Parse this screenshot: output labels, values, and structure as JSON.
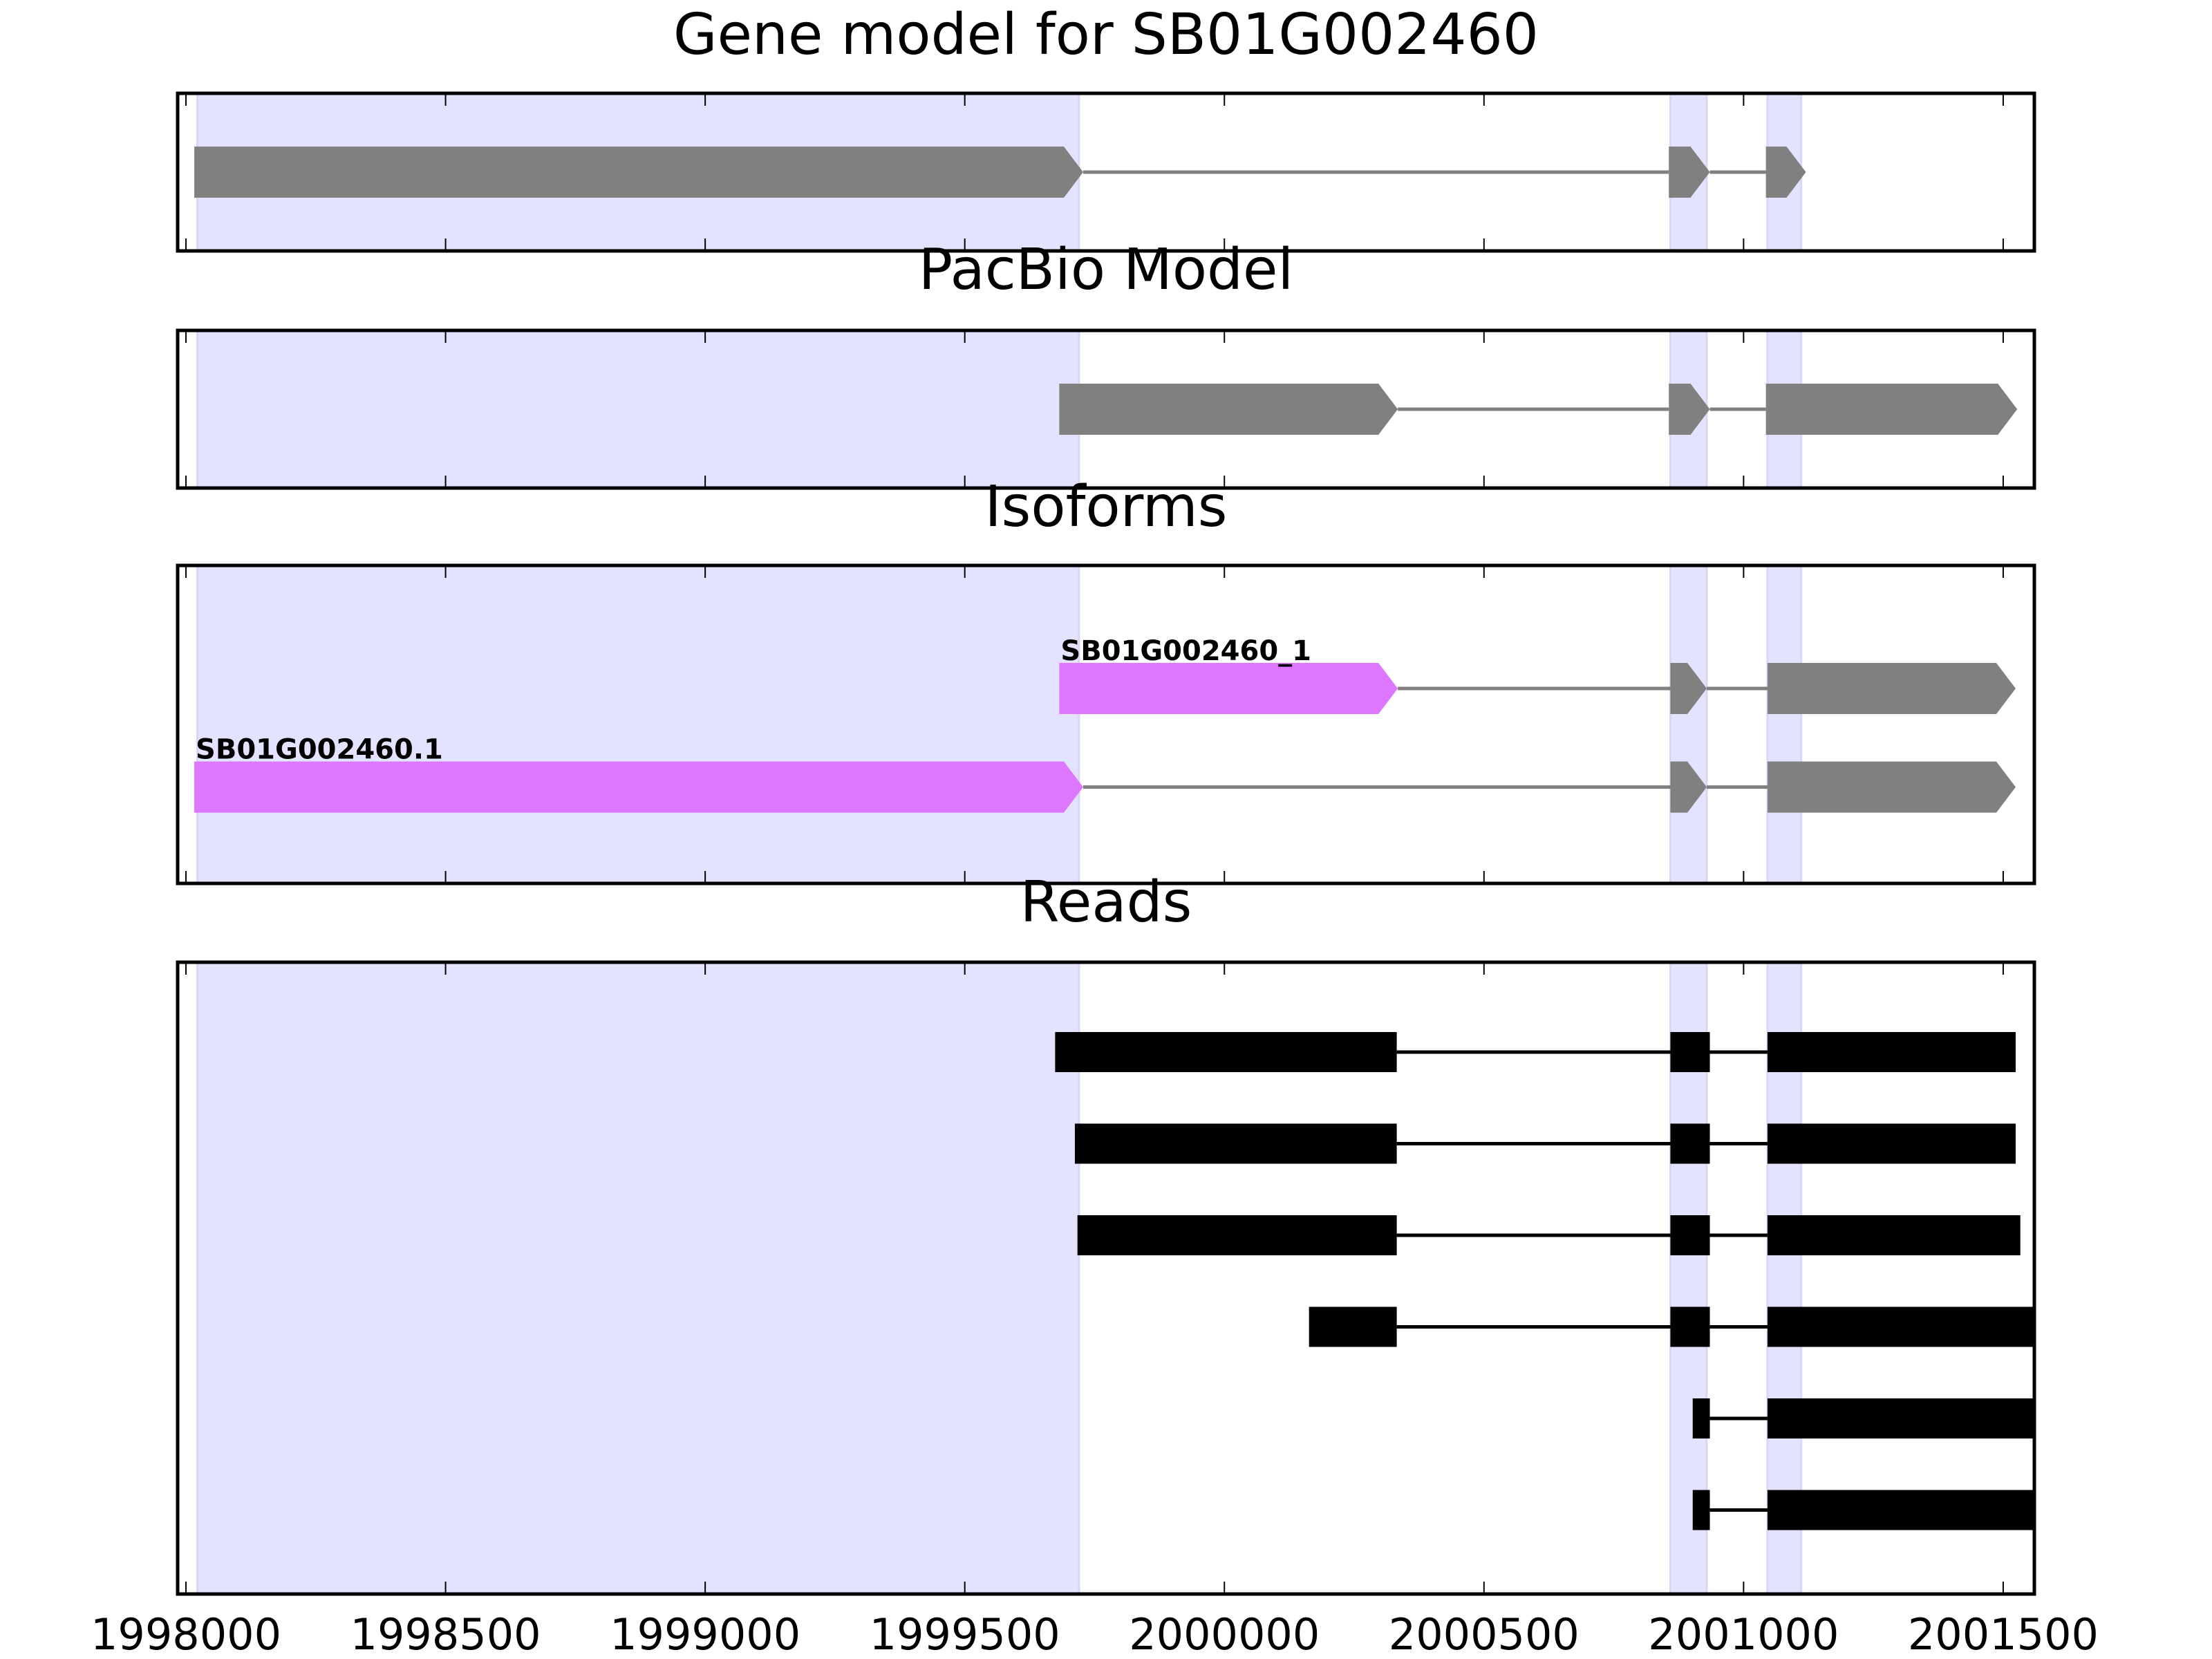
{
  "chart_data": {
    "type": "gene-track",
    "xlim": [
      1997984,
      2001560
    ],
    "xticks": [
      1998000,
      1998500,
      1999000,
      1999500,
      2000000,
      2000500,
      2001000,
      2001500
    ],
    "xtick_labels": [
      "1998000",
      "1998500",
      "1999000",
      "1999500",
      "2000000",
      "2000500",
      "2001000",
      "2001500"
    ],
    "shaded_regions": [
      [
        1998022,
        1999720
      ],
      [
        2000859,
        2000929
      ],
      [
        2001046,
        2001111
      ]
    ],
    "colors": {
      "exon": "#808080",
      "isoform_highlight": "#dd77ff",
      "read": "#000000",
      "shade": "#e3e3ff",
      "intron": "#808080"
    },
    "panels": [
      {
        "title": "Gene model for SB01G002460",
        "kind": "model",
        "rows": [
          {
            "label": "",
            "exons": [
              [
                1998016,
                1999728
              ],
              [
                2000856,
                2000935
              ],
              [
                2001043,
                2001120
              ]
            ],
            "highlight": []
          }
        ]
      },
      {
        "title": "PacBio Model",
        "kind": "model",
        "rows": [
          {
            "label": "",
            "exons": [
              [
                1999682,
                2000334
              ],
              [
                2000856,
                2000935
              ],
              [
                2001043,
                2001527
              ]
            ],
            "highlight": []
          }
        ]
      },
      {
        "title": "Isoforms",
        "kind": "model",
        "rows": [
          {
            "label": "SB01G002460_1",
            "exons": [
              [
                1999682,
                2000334
              ],
              [
                2000859,
                2000929
              ],
              [
                2001046,
                2001524
              ]
            ],
            "highlight": [
              0
            ]
          },
          {
            "label": "SB01G002460.1",
            "exons": [
              [
                1998016,
                1999728
              ],
              [
                2000859,
                2000929
              ],
              [
                2001046,
                2001524
              ]
            ],
            "highlight": [
              0
            ]
          }
        ]
      },
      {
        "title": "Reads",
        "kind": "reads",
        "rows": [
          {
            "exons": [
              [
                1999674,
                2000332
              ],
              [
                2000859,
                2000935
              ],
              [
                2001046,
                2001524
              ]
            ]
          },
          {
            "exons": [
              [
                1999712,
                2000332
              ],
              [
                2000859,
                2000935
              ],
              [
                2001046,
                2001524
              ]
            ]
          },
          {
            "exons": [
              [
                1999717,
                2000332
              ],
              [
                2000859,
                2000935
              ],
              [
                2001046,
                2001533
              ]
            ]
          },
          {
            "exons": [
              [
                2000163,
                2000332
              ],
              [
                2000859,
                2000935
              ],
              [
                2001046,
                2001560
              ]
            ]
          },
          {
            "exons": [
              [
                2000902,
                2000935
              ],
              [
                2001046,
                2001560
              ]
            ]
          },
          {
            "exons": [
              [
                2000902,
                2000935
              ],
              [
                2001046,
                2001560
              ]
            ]
          }
        ]
      }
    ]
  }
}
